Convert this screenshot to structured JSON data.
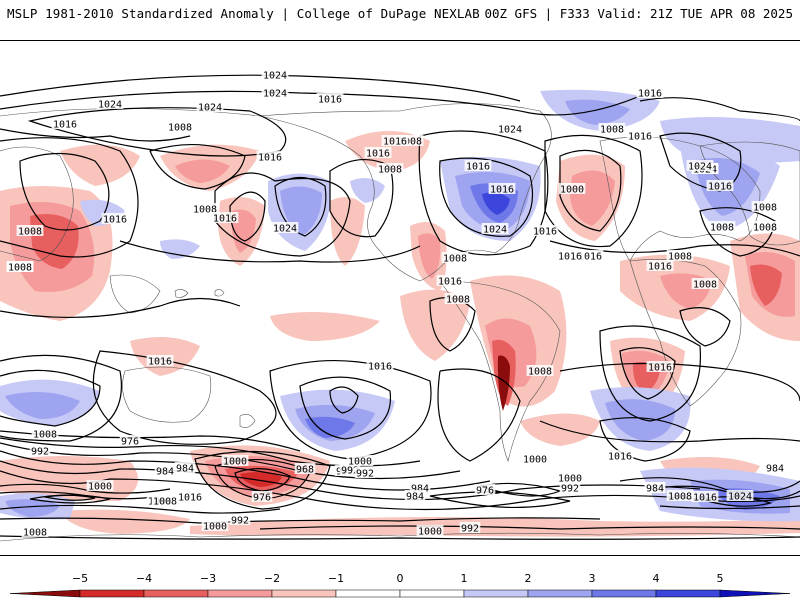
{
  "header": {
    "left_title": "MSLP 1981-2010 Standardized Anomaly | College of DuPage NEXLAB",
    "right_title": "00Z GFS | F333 Valid: 21Z TUE APR 08 2025"
  },
  "colors": {
    "dark_red": "#8a0c0c",
    "red": "#d42a2a",
    "mid_red": "#e85f5f",
    "light_red": "#f59b9b",
    "pale_red": "#f8c4bc",
    "pale_blue": "#c6c8f6",
    "light_blue": "#9ea4f0",
    "mid_blue": "#6f78e8",
    "blue": "#3c46dc",
    "dark_blue": "#1010b8",
    "contour": "#000000",
    "coastline": "#555555"
  },
  "colorbar": {
    "ticks": [
      "−5",
      "−4",
      "−3",
      "−2",
      "−1",
      "0",
      "1",
      "2",
      "3",
      "4",
      "5"
    ],
    "min": -5,
    "max": 5
  },
  "isobar_labels": [
    "1024",
    "1024",
    "1024",
    "1024",
    "1016",
    "1016",
    "1008",
    "1016",
    "1008",
    "1016",
    "1024",
    "1008",
    "1008",
    "1008",
    "1016",
    "1008",
    "1016",
    "1024",
    "1016",
    "1016",
    "1016",
    "1008",
    "1000",
    "1016",
    "1024",
    "1016",
    "1024",
    "1016",
    "1008",
    "1016",
    "1008",
    "1008",
    "1008",
    "1024",
    "1016",
    "1008",
    "1008",
    "1016",
    "1016",
    "1016",
    "1024",
    "1016",
    "1016",
    "1008",
    "1016",
    "1008",
    "1008",
    "1000",
    "992",
    "976",
    "984",
    "984",
    "992",
    "1000",
    "1008",
    "1016",
    "968",
    "976",
    "1008",
    "1000",
    "992",
    "1000",
    "992",
    "984",
    "976",
    "1008",
    "1000",
    "1016",
    "984",
    "976",
    "984",
    "992",
    "1008",
    "1016",
    "1024",
    "1000",
    "992",
    "984",
    "1000",
    "992",
    "1008"
  ]
}
